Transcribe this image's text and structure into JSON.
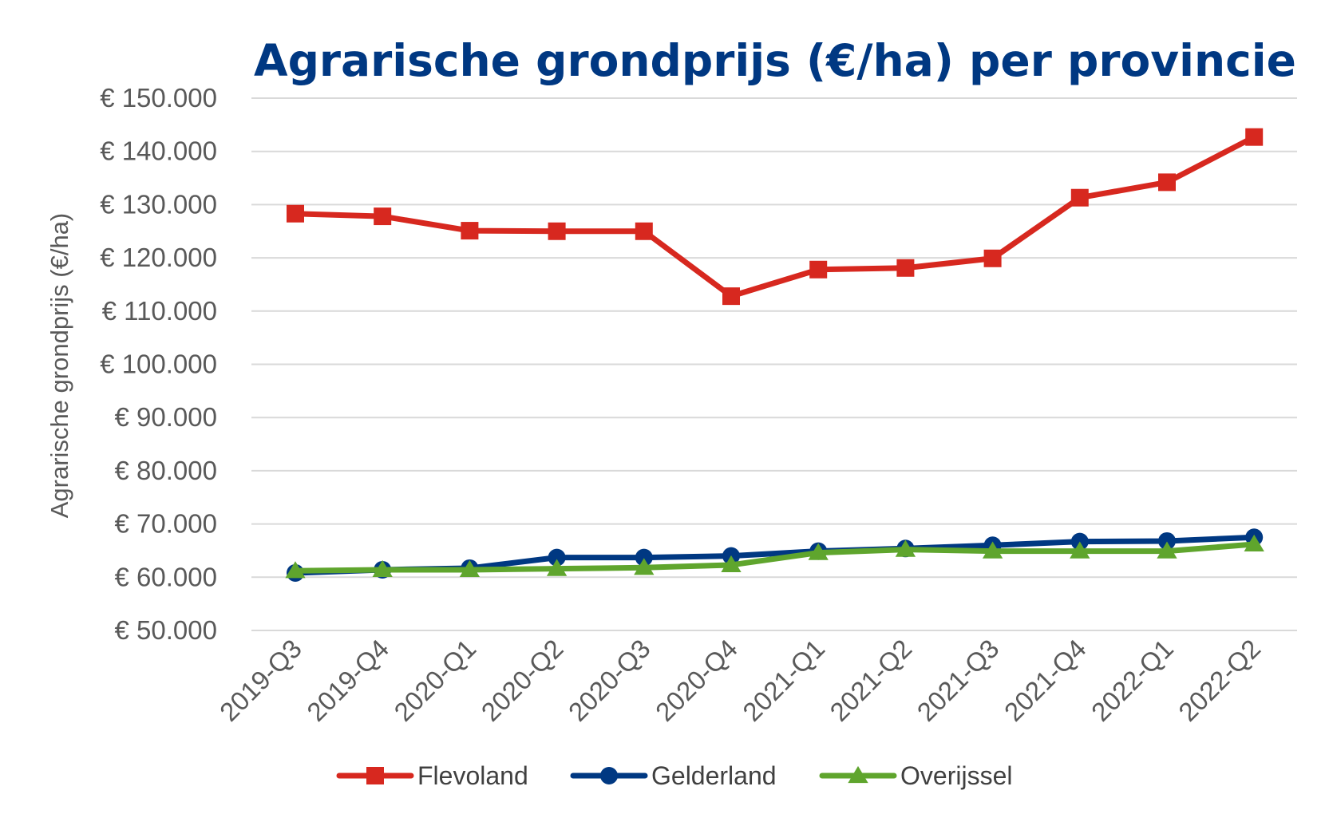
{
  "chart_data": {
    "type": "line",
    "title": "Agrarische grondprijs (€/ha) per provincie",
    "ylabel": "Agrarische grondprijs (€/ha)",
    "xlabel": "",
    "categories": [
      "2019-Q3",
      "2019-Q4",
      "2020-Q1",
      "2020-Q2",
      "2020-Q3",
      "2020-Q4",
      "2021-Q1",
      "2021-Q2",
      "2021-Q3",
      "2021-Q4",
      "2022-Q1",
      "2022-Q2"
    ],
    "ylim": [
      50000,
      150000
    ],
    "ytick_labels": [
      "€ 150.000",
      "€ 140.000",
      "€ 130.000",
      "€ 120.000",
      "€ 110.000",
      "€ 100.000",
      "€ 90.000",
      "€ 80.000",
      "€ 70.000",
      "€ 60.000",
      "€ 50.000"
    ],
    "grid": true,
    "legend_position": "bottom",
    "colors": {
      "title": "#003882",
      "grid": "#d9d9d9",
      "text": "#595959"
    },
    "series": [
      {
        "name": "Flevoland",
        "color": "#d7281f",
        "marker": "square",
        "values": [
          128300,
          127800,
          125100,
          125000,
          125000,
          112800,
          117800,
          118100,
          119900,
          131300,
          134200,
          142700
        ]
      },
      {
        "name": "Gelderland",
        "color": "#003882",
        "marker": "circle",
        "values": [
          60800,
          61400,
          61700,
          63700,
          63700,
          64000,
          64900,
          65400,
          66000,
          66700,
          66800,
          67500
        ]
      },
      {
        "name": "Overijssel",
        "color": "#5fa52d",
        "marker": "triangle",
        "values": [
          61200,
          61400,
          61400,
          61600,
          61800,
          62300,
          64600,
          65200,
          64900,
          64900,
          64900,
          66200
        ]
      }
    ]
  }
}
